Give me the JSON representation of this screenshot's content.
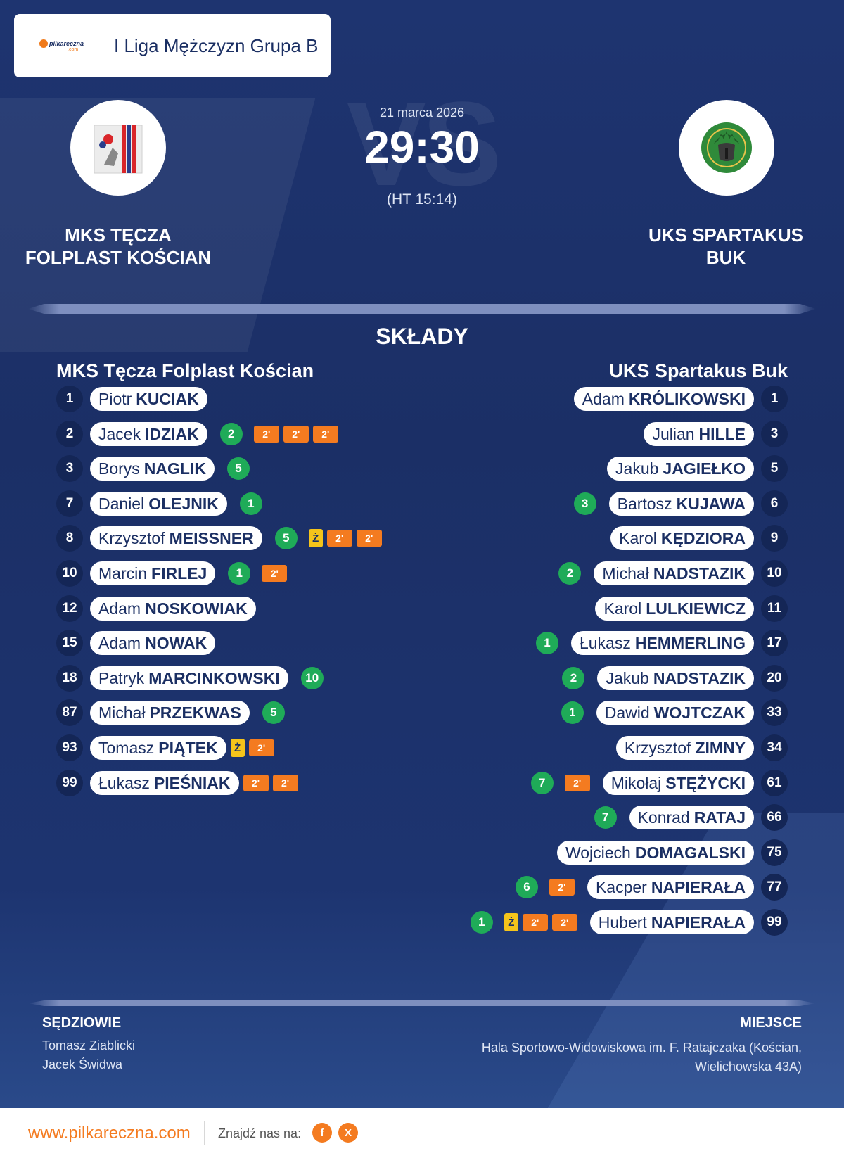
{
  "header": {
    "brand": "pilkareczna",
    "brand_sub": ".com",
    "league": "I Liga Mężczyzn Grupa B"
  },
  "match": {
    "date": "21 marca 2026",
    "score": "29:30",
    "halftime": "(HT 15:14)",
    "vs": "VS"
  },
  "home": {
    "name_line1": "MKS TĘCZA",
    "name_line2": "FOLPLAST KOŚCIAN",
    "squad_title": "MKS Tęcza Folplast Kościan"
  },
  "away": {
    "name_line1": "UKS SPARTAKUS",
    "name_line2": "BUK",
    "squad_title": "UKS Spartakus Buk"
  },
  "section_title": "SKŁADY",
  "home_players": [
    {
      "number": "1",
      "first": "Piotr",
      "last": "KUCIAK"
    },
    {
      "number": "2",
      "first": "Jacek",
      "last": "IDZIAK",
      "goals": "2",
      "penalties": [
        "2'",
        "2'",
        "2'"
      ]
    },
    {
      "number": "3",
      "first": "Borys",
      "last": "NAGLIK",
      "goals": "5"
    },
    {
      "number": "7",
      "first": "Daniel",
      "last": "OLEJNIK",
      "goals": "1"
    },
    {
      "number": "8",
      "first": "Krzysztof",
      "last": "MEISSNER",
      "goals": "5",
      "yellow": "Ż",
      "penalties": [
        "2'",
        "2'"
      ]
    },
    {
      "number": "10",
      "first": "Marcin",
      "last": "FIRLEJ",
      "goals": "1",
      "penalties": [
        "2'"
      ]
    },
    {
      "number": "12",
      "first": "Adam",
      "last": "NOSKOWIAK"
    },
    {
      "number": "15",
      "first": "Adam",
      "last": "NOWAK"
    },
    {
      "number": "18",
      "first": "Patryk",
      "last": "MARCINKOWSKI",
      "goals": "10"
    },
    {
      "number": "87",
      "first": "Michał",
      "last": "PRZEKWAS",
      "goals": "5"
    },
    {
      "number": "93",
      "first": "Tomasz",
      "last": "PIĄTEK",
      "yellow": "Ż",
      "penalties": [
        "2'"
      ]
    },
    {
      "number": "99",
      "first": "Łukasz",
      "last": "PIEŚNIAK",
      "penalties": [
        "2'",
        "2'"
      ]
    }
  ],
  "away_players": [
    {
      "number": "1",
      "first": "Adam",
      "last": "KRÓLIKOWSKI"
    },
    {
      "number": "3",
      "first": "Julian",
      "last": "HILLE"
    },
    {
      "number": "5",
      "first": "Jakub",
      "last": "JAGIEŁKO"
    },
    {
      "number": "6",
      "first": "Bartosz",
      "last": "KUJAWA",
      "goals": "3"
    },
    {
      "number": "9",
      "first": "Karol",
      "last": "KĘDZIORA"
    },
    {
      "number": "10",
      "first": "Michał",
      "last": "NADSTAZIK",
      "goals": "2"
    },
    {
      "number": "11",
      "first": "Karol",
      "last": "LULKIEWICZ"
    },
    {
      "number": "17",
      "first": "Łukasz",
      "last": "HEMMERLING",
      "goals": "1"
    },
    {
      "number": "20",
      "first": "Jakub",
      "last": "NADSTAZIK",
      "goals": "2"
    },
    {
      "number": "33",
      "first": "Dawid",
      "last": "WOJTCZAK",
      "goals": "1"
    },
    {
      "number": "34",
      "first": "Krzysztof",
      "last": "ZIMNY"
    },
    {
      "number": "61",
      "first": "Mikołaj",
      "last": "STĘŻYCKI",
      "goals": "7",
      "penalties": [
        "2'"
      ]
    },
    {
      "number": "66",
      "first": "Konrad",
      "last": "RATAJ",
      "goals": "7"
    },
    {
      "number": "75",
      "first": "Wojciech",
      "last": "DOMAGALSKI"
    },
    {
      "number": "77",
      "first": "Kacper",
      "last": "NAPIERAŁA",
      "goals": "6",
      "penalties": [
        "2'"
      ]
    },
    {
      "number": "99",
      "first": "Hubert",
      "last": "NAPIERAŁA",
      "goals": "1",
      "yellow": "Ż",
      "penalties": [
        "2'",
        "2'"
      ]
    }
  ],
  "officials": {
    "title": "SĘDZIOWIE",
    "referees": [
      "Tomasz Ziablicki",
      "Jacek Świdwa"
    ]
  },
  "venue": {
    "title": "MIEJSCE",
    "line1": "Hala Sportowo-Widowiskowa im. F. Ratajczaka (Kościan,",
    "line2": "Wielichowska 43A)"
  },
  "footer": {
    "site": "www.pilkareczna.com",
    "find_label": "Znajdź nas na:",
    "social": [
      {
        "icon": "facebook-icon",
        "glyph": "f"
      },
      {
        "icon": "x-icon",
        "glyph": "X"
      }
    ]
  },
  "colors": {
    "background": "#1b2f63",
    "accent": "#f47b20",
    "goals": "#1fab58",
    "yellow": "#f5c41b"
  }
}
